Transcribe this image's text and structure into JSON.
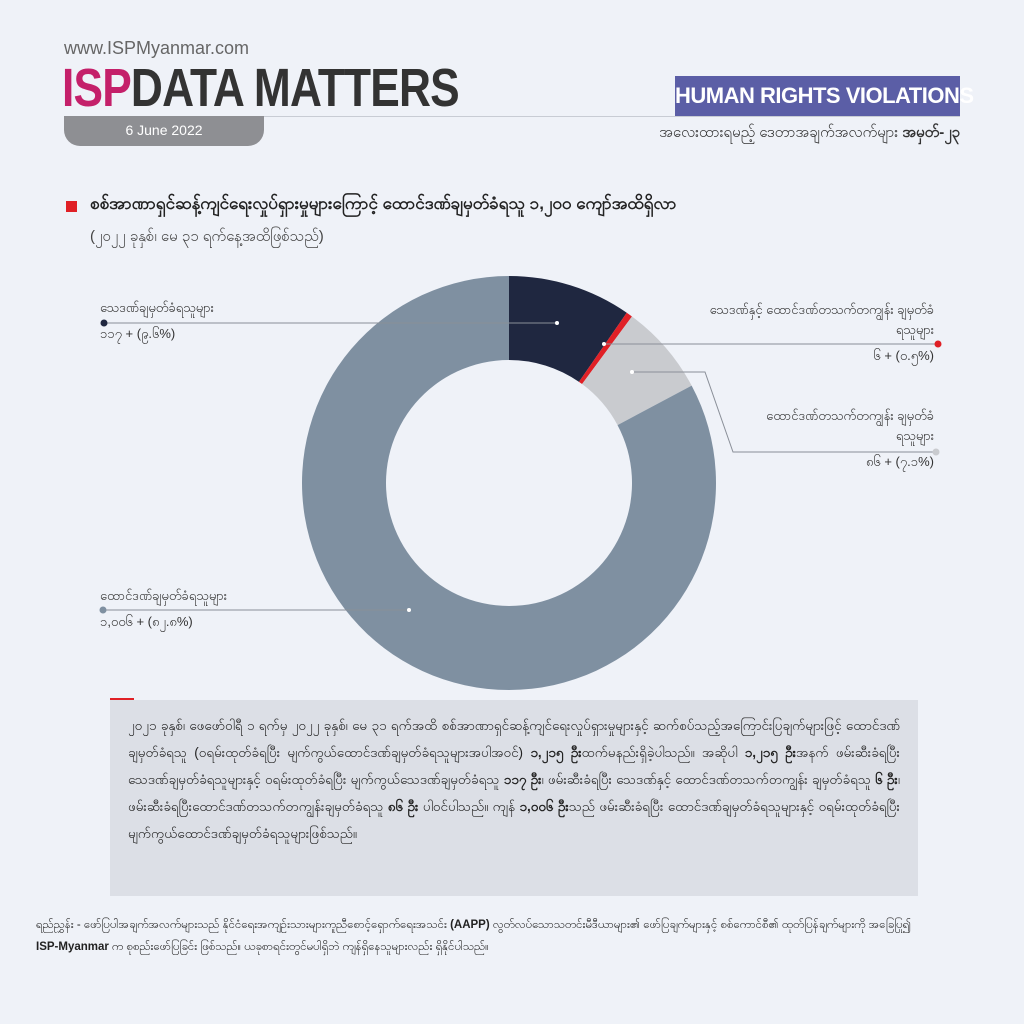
{
  "header": {
    "site": "www.ISPMyanmar.com",
    "brand_isp": "ISP",
    "brand_rest": "DATA MATTERS",
    "date": "6 June 2022",
    "category": "HUMAN RIGHTS VIOLATIONS",
    "fact_label": "အလေးထားရမည့် ဒေတာအချက်အလက်များ",
    "fact_number": "အမှတ်-၂၃"
  },
  "colors": {
    "death": "#1f2740",
    "death_and_life": "#e02026",
    "life": "#c9cbcf",
    "prison": "#7f90a1",
    "accent": "#e02026",
    "category_bg": "#5b5ea6"
  },
  "chart_data": {
    "type": "pie",
    "donut": true,
    "title": "စစ်အာဏာရှင်ဆန့်ကျင်ရေးလှုပ်ရှားမှုများကြောင့် ထောင်ဒဏ်ချမှတ်ခံရသူ ၁,၂၀၀ ကျော်အထိရှိလာ",
    "subtitle": "(၂၀၂၂ ခုနှစ်၊ မေ ၃၁ ရက်နေ့အထိဖြစ်သည်)",
    "slices": [
      {
        "name": "သေဒဏ်ချမှတ်ခံရသူများ",
        "value": 117,
        "percent": 9.6,
        "label": "၁၁၇ + (၉.၆%)",
        "color": "#1f2740"
      },
      {
        "name": "သေဒဏ်နှင့် ထောင်ဒဏ်တသက်တကျွန်း ချမှတ်ခံရသူများ",
        "value": 6,
        "percent": 0.5,
        "label": "၆ + (၀.၅%)",
        "color": "#e02026"
      },
      {
        "name": "ထောင်ဒဏ်တသက်တကျွန်း ချမှတ်ခံရသူများ",
        "value": 86,
        "percent": 7.1,
        "label": "၈၆ + (၇.၁%)",
        "color": "#c9cbcf"
      },
      {
        "name": "ထောင်ဒဏ်ချမှတ်ခံရသူများ",
        "value": 1006,
        "percent": 82.8,
        "label": "၁,၀၀၆ + (၈၂.၈%)",
        "color": "#7f90a1"
      }
    ]
  },
  "note": [
    {
      "t": "၂၀၂၁ ခုနှစ်၊ ဖေဖော်ဝါရီ ၁ ရက်မှ ၂၀၂၂ ခုနှစ်၊ မေ ၃၁ ရက်အထိ စစ်အာဏာရှင်ဆန့်ကျင်ရေးလှုပ်ရှားမှုများနှင့် ဆက်စပ်သည့်အကြောင်းပြချက်များဖြင့် ထောင်ဒဏ်ချမှတ်ခံရသူ (ဝရမ်းထုတ်ခံရပြီး မျက်ကွယ်ထောင်ဒဏ်ချမှတ်ခံရသူများအပါအဝင်) ",
      "b": false
    },
    {
      "t": "၁,၂၁၅ ဦး",
      "b": true
    },
    {
      "t": "ထက်မနည်းရှိခဲ့ပါသည်။ အဆိုပါ ",
      "b": false
    },
    {
      "t": "၁,၂၁၅ ဦး",
      "b": true
    },
    {
      "t": "အနက် ဖမ်းဆီးခံရပြီး သေဒဏ်ချမှတ်ခံရသူများနှင့် ဝရမ်းထုတ်ခံရပြီး မျက်ကွယ်သေဒဏ်ချမှတ်ခံရသူ ",
      "b": false
    },
    {
      "t": "၁၁၇ ဦး",
      "b": true
    },
    {
      "t": "၊ ဖမ်းဆီးခံရပြီး သေဒဏ်နှင့် ထောင်ဒဏ်တသက်တကျွန်း ချမှတ်ခံရသူ ",
      "b": false
    },
    {
      "t": "၆ ဦး",
      "b": true
    },
    {
      "t": "၊ ဖမ်းဆီးခံရပြီးထောင်ဒဏ်တသက်တကျွန်းချမှတ်ခံရသူ ",
      "b": false
    },
    {
      "t": "၈၆ ဦး",
      "b": true
    },
    {
      "t": " ပါဝင်ပါသည်။ ကျန် ",
      "b": false
    },
    {
      "t": "၁,၀၀၆ ဦး",
      "b": true
    },
    {
      "t": "သည် ဖမ်းဆီးခံရပြီး ထောင်ဒဏ်ချမှတ်ခံရသူများနှင့် ဝရမ်းထုတ်ခံရပြီး မျက်ကွယ်ထောင်ဒဏ်ချမှတ်ခံရသူများဖြစ်သည်။",
      "b": false
    }
  ],
  "source": {
    "label": "ရည်ညွှန်း -",
    "parts": [
      {
        "t": " ဖော်ပြပါအချက်အလက်များသည် နိုင်ငံရေးအကျဉ်းသားများကူညီစောင့်ရှောက်ရေးအသင်း ",
        "b": false
      },
      {
        "t": "(AAPP)",
        "b": true
      },
      {
        "t": " လွတ်လပ်သောသတင်းမီဒီယာများ၏ ဖော်ပြချက်များနှင့် စစ်ကောင်စီ၏ ထုတ်ပြန်ချက်များကို အခြေပြု၍ ",
        "b": false
      },
      {
        "t": "ISP-Myanmar",
        "b": true
      },
      {
        "t": " က စုစည်းဖော်ပြခြင်း ဖြစ်သည်။ ယခုစာရင်းတွင်မပါရှိဘဲ ကျန်ရှိနေသူများလည်း ရှိနိုင်ပါသည်။",
        "b": false
      }
    ]
  }
}
